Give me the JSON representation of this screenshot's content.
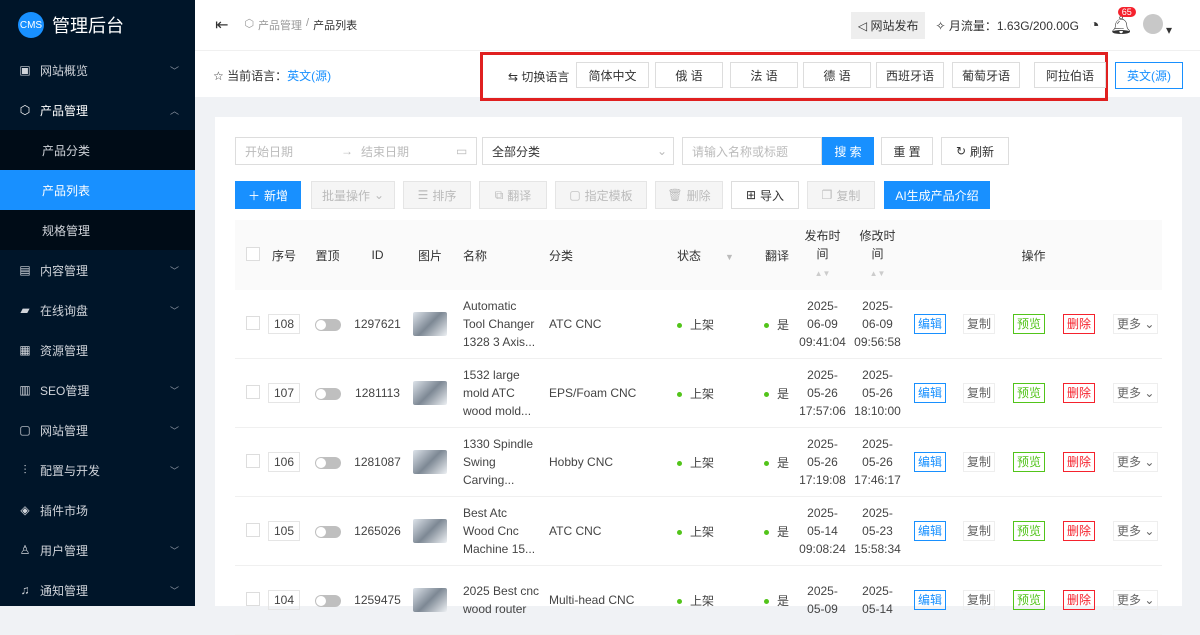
{
  "app": {
    "logo": "CMS",
    "title": "管理后台"
  },
  "sidebar": {
    "items": [
      {
        "label": "网站概览",
        "icon": "monitor-icon",
        "chevron": "﹀"
      },
      {
        "label": "产品管理",
        "icon": "cube-icon",
        "chevron": "︿",
        "open": true,
        "children": [
          {
            "label": "产品分类"
          },
          {
            "label": "产品列表",
            "active": true
          },
          {
            "label": "规格管理"
          }
        ]
      },
      {
        "label": "内容管理",
        "icon": "document-icon",
        "chevron": "﹀"
      },
      {
        "label": "在线询盘",
        "icon": "chat-icon",
        "chevron": "﹀"
      },
      {
        "label": "资源管理",
        "icon": "folder-icon"
      },
      {
        "label": "SEO管理",
        "icon": "seo-icon",
        "chevron": "﹀"
      },
      {
        "label": "网站管理",
        "icon": "browser-icon",
        "chevron": "﹀"
      },
      {
        "label": "配置与开发",
        "icon": "sliders-icon",
        "chevron": "﹀"
      },
      {
        "label": "插件市场",
        "icon": "plugin-icon"
      },
      {
        "label": "用户管理",
        "icon": "user-icon",
        "chevron": "﹀"
      },
      {
        "label": "通知管理",
        "icon": "bell-icon",
        "chevron": "﹀"
      }
    ]
  },
  "header": {
    "breadcrumb": [
      "产品管理",
      "/",
      "产品列表"
    ],
    "publish": "网站发布",
    "traffic": "月流量：1.63G/200.00G",
    "notifications": "65"
  },
  "langbar": {
    "current_label": "当前语言：",
    "current_value": "英文(源)",
    "switch_label": "切换语言",
    "languages": [
      "简体中文",
      "俄 语",
      "法 语",
      "德 语",
      "西班牙语",
      "葡萄牙语",
      "阿拉伯语"
    ],
    "source_button": "英文(源)"
  },
  "filters": {
    "start_placeholder": "开始日期",
    "end_placeholder": "结束日期",
    "category": "全部分类",
    "search_placeholder": "请输入名称或标题",
    "search": "搜 索",
    "reset": "重 置",
    "refresh": "刷新"
  },
  "toolbar": {
    "add": "新增",
    "batch": "批量操作",
    "sort": "排序",
    "translate": "翻译",
    "template": "指定模板",
    "delete": "删除",
    "import": "导入",
    "copy": "复制",
    "ai": "AI生成产品介绍"
  },
  "table": {
    "headers": {
      "seq": "序号",
      "top": "置顶",
      "id": "ID",
      "image": "图片",
      "name": "名称",
      "category": "分类",
      "status": "状态",
      "translated": "翻译",
      "published_1": "发布时",
      "published_2": "间",
      "modified_1": "修改时",
      "modified_2": "间",
      "actions": "操作"
    },
    "actions": {
      "edit": "编辑",
      "copy": "复制",
      "preview": "预览",
      "delete": "删除",
      "more": "更多"
    },
    "rows": [
      {
        "seq": "108",
        "id": "1297621",
        "name": [
          "Automatic",
          "Tool Changer",
          "1328 3 Axis..."
        ],
        "category": "ATC CNC",
        "status": "上架",
        "translated": "是",
        "published": [
          "2025-",
          "06-09",
          "09:41:04"
        ],
        "modified": [
          "2025-",
          "06-09",
          "09:56:58"
        ]
      },
      {
        "seq": "107",
        "id": "1281113",
        "name": [
          "1532 large",
          "mold ATC",
          "wood mold..."
        ],
        "category": "EPS/Foam CNC",
        "status": "上架",
        "translated": "是",
        "published": [
          "2025-",
          "05-26",
          "17:57:06"
        ],
        "modified": [
          "2025-",
          "05-26",
          "18:10:00"
        ]
      },
      {
        "seq": "106",
        "id": "1281087",
        "name": [
          "1330 Spindle",
          "Swing",
          "Carving..."
        ],
        "category": "Hobby CNC",
        "status": "上架",
        "translated": "是",
        "published": [
          "2025-",
          "05-26",
          "17:19:08"
        ],
        "modified": [
          "2025-",
          "05-26",
          "17:46:17"
        ]
      },
      {
        "seq": "105",
        "id": "1265026",
        "name": [
          "Best Atc",
          "Wood Cnc",
          "Machine 15..."
        ],
        "category": "ATC CNC",
        "status": "上架",
        "translated": "是",
        "published": [
          "2025-",
          "05-14",
          "09:08:24"
        ],
        "modified": [
          "2025-",
          "05-23",
          "15:58:34"
        ]
      },
      {
        "seq": "104",
        "id": "1259475",
        "name": [
          "2025 Best cnc",
          "wood router",
          ""
        ],
        "category": "Multi-head CNC",
        "status": "上架",
        "translated": "是",
        "published": [
          "2025-",
          "05-09",
          ""
        ],
        "modified": [
          "2025-",
          "05-14",
          ""
        ]
      }
    ]
  },
  "colors": {
    "sidebar": "#001529",
    "primary": "#1890ff",
    "success": "#52c41a",
    "danger": "#f5222d",
    "highlight_box": "#e02020"
  }
}
